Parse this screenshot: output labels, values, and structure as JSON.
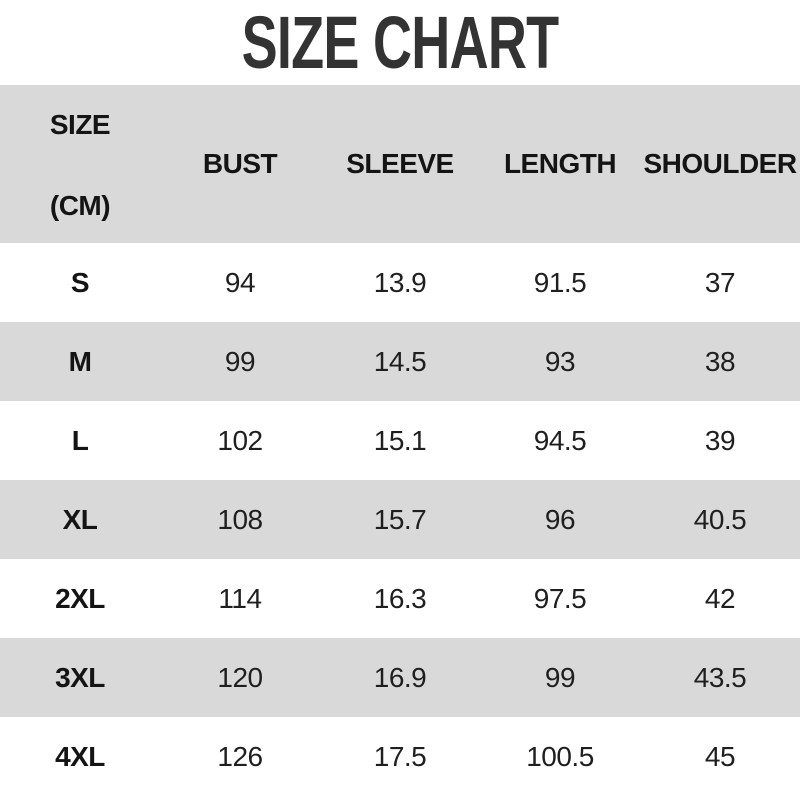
{
  "title": "SIZE CHART",
  "header": {
    "size_line1": "SIZE",
    "size_line2": "(CM)",
    "cols": [
      "BUST",
      "SLEEVE",
      "LENGTH",
      "SHOULDER"
    ]
  },
  "colors": {
    "background": "#ffffff",
    "row_gray": "#d9d9d9",
    "title_text": "#333333",
    "table_text": "#1a1a1a"
  },
  "chart_data": {
    "type": "table",
    "title": "SIZE CHART",
    "unit": "CM",
    "columns": [
      "SIZE (CM)",
      "BUST",
      "SLEEVE",
      "LENGTH",
      "SHOULDER"
    ],
    "rows": [
      [
        "S",
        94,
        13.9,
        91.5,
        37
      ],
      [
        "M",
        99,
        14.5,
        93,
        38
      ],
      [
        "L",
        102,
        15.1,
        94.5,
        39
      ],
      [
        "XL",
        108,
        15.7,
        96,
        40.5
      ],
      [
        "2XL",
        114,
        16.3,
        97.5,
        42
      ],
      [
        "3XL",
        120,
        16.9,
        99,
        43.5
      ],
      [
        "4XL",
        126,
        17.5,
        100.5,
        45
      ]
    ],
    "layout": {
      "alternating_row_colors": [
        "#ffffff",
        "#d9d9d9"
      ],
      "header_background": "#d9d9d9",
      "grid": false
    }
  }
}
